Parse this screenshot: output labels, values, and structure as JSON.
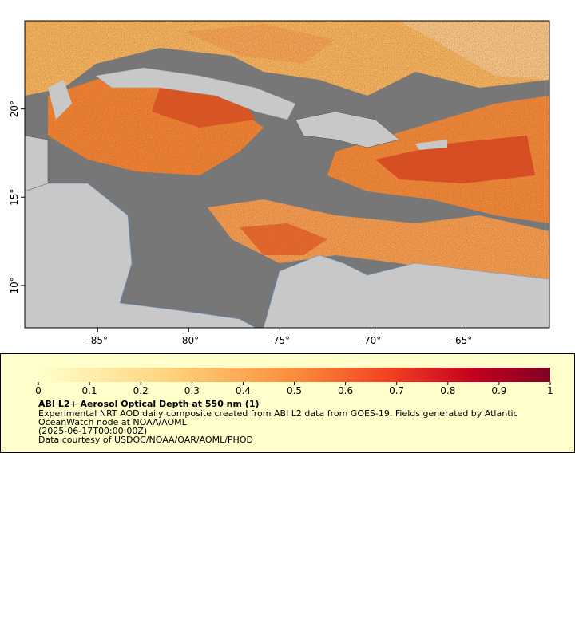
{
  "map": {
    "xlim": [
      -89,
      -60.2
    ],
    "ylim": [
      7.6,
      25
    ],
    "xticks": [
      {
        "value": -85,
        "label": "-85°"
      },
      {
        "value": -80,
        "label": "-80°"
      },
      {
        "value": -75,
        "label": "-75°"
      },
      {
        "value": -70,
        "label": "-70°"
      },
      {
        "value": -65,
        "label": "-65°"
      }
    ],
    "yticks": [
      {
        "value": 10,
        "label": "10°"
      },
      {
        "value": 15,
        "label": "15°"
      },
      {
        "value": 20,
        "label": "20°"
      }
    ]
  },
  "legend": {
    "colorbar": {
      "range": [
        0,
        1
      ],
      "ticks": [
        0,
        0.1,
        0.2,
        0.3,
        0.4,
        0.5,
        0.6,
        0.7,
        0.8,
        0.9,
        1
      ]
    },
    "title": "ABI L2+ Aerosol Optical Depth at 550 nm (1)",
    "description": "Experimental NRT AOD daily composite created from ABI L2 data from GOES-19. Fields generated by Atlantic OceanWatch node at NOAA/AOML",
    "time": "(2025-06-17T00:00:00Z)",
    "credit": "Data courtesy of USDOC/NOAA/OAR/AOML/PHOD"
  }
}
